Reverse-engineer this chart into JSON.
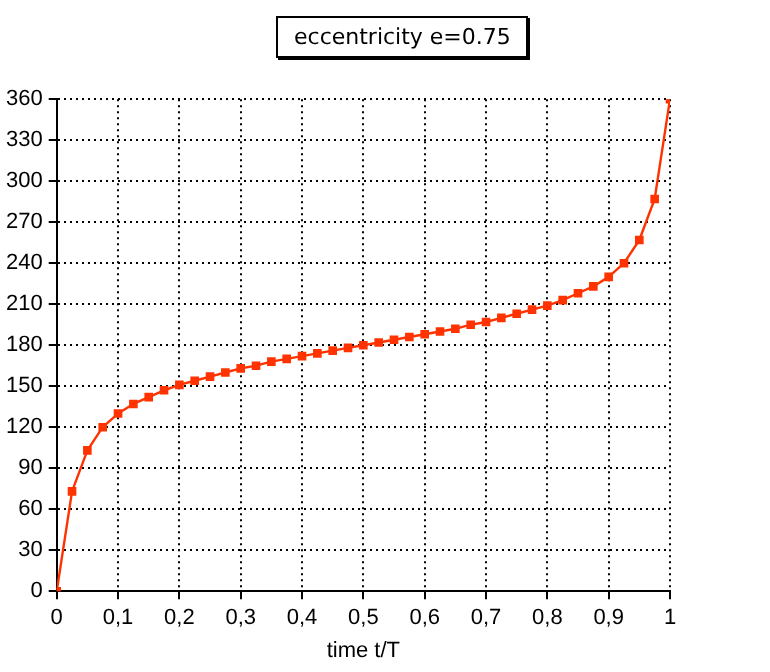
{
  "chart_data": {
    "type": "line",
    "title": "eccentricity e=0.75",
    "xlabel": "time t/T",
    "x": [
      0,
      0.025,
      0.05,
      0.075,
      0.1,
      0.125,
      0.15,
      0.175,
      0.2,
      0.225,
      0.25,
      0.275,
      0.3,
      0.325,
      0.35,
      0.375,
      0.4,
      0.425,
      0.45,
      0.475,
      0.5,
      0.525,
      0.55,
      0.575,
      0.6,
      0.625,
      0.65,
      0.675,
      0.7,
      0.725,
      0.75,
      0.775,
      0.8,
      0.825,
      0.85,
      0.875,
      0.9,
      0.925,
      0.95,
      0.975,
      1
    ],
    "series": [
      {
        "color": "#ff3300",
        "values": [
          0,
          73,
          103,
          120,
          130,
          137,
          142,
          147,
          151,
          154,
          157,
          160,
          163,
          165,
          168,
          170,
          172,
          174,
          176,
          178,
          180,
          182,
          184,
          186,
          188,
          190,
          192,
          195,
          197,
          200,
          203,
          206,
          209,
          213,
          218,
          223,
          230,
          240,
          257,
          287,
          360
        ]
      }
    ],
    "xlim": [
      0,
      1
    ],
    "xticks": [
      0,
      {
        "value": 0.1,
        "label": "0,1"
      },
      {
        "value": 0.2,
        "label": "0,2"
      },
      {
        "value": 0.3,
        "label": "0,3"
      },
      {
        "value": 0.4,
        "label": "0,4"
      },
      {
        "value": 0.5,
        "label": "0,5"
      },
      {
        "value": 0.6,
        "label": "0,6"
      },
      {
        "value": 0.7,
        "label": "0,7"
      },
      {
        "value": 0.8,
        "label": "0,8"
      },
      {
        "value": 0.9,
        "label": "0,9"
      },
      1
    ],
    "ylim": [
      0,
      360
    ],
    "yticks": [
      0,
      30,
      60,
      90,
      120,
      150,
      180,
      210,
      240,
      270,
      300,
      330,
      360
    ],
    "grid": true,
    "legend": false,
    "marker": "square",
    "line_style": "solid"
  }
}
